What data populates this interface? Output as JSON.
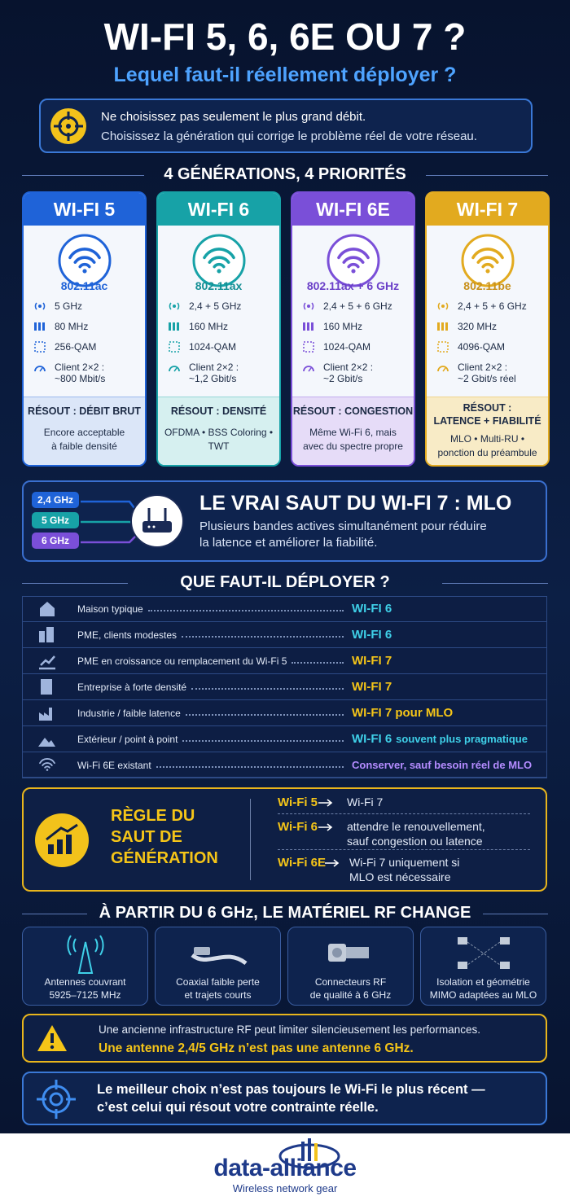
{
  "header": {
    "title": "WI-FI 5, 6, 6E OU 7 ?",
    "subtitle": "Lequel faut-il réellement déployer ?"
  },
  "intro": {
    "lines": [
      "Ne choisissez pas seulement le plus grand débit.",
      "Choisissez la génération qui corrige le problème réel de votre réseau."
    ]
  },
  "generations": {
    "heading": "4 GÉNÉRATIONS, 4 PRIORITÉS",
    "cards": [
      {
        "name": "WI-FI 5",
        "standard": "802.11ac",
        "band": "5 GHz",
        "width": "80 MHz",
        "qam": "256-QAM",
        "client": [
          "Client 2×2 :",
          "~800 Mbit/s"
        ],
        "resolves": [
          "RÉSOUT : DÉBIT BRUT"
        ],
        "text": [
          "Encore acceptable",
          "à faible densité"
        ]
      },
      {
        "name": "WI-FI 6",
        "standard": "802.11ax",
        "band": "2,4 + 5 GHz",
        "width": "160 MHz",
        "qam": "1024-QAM",
        "client": [
          "Client 2×2 :",
          "~1,2 Gbit/s"
        ],
        "resolves": [
          "RÉSOUT : DENSITÉ"
        ],
        "text": [
          "OFDMA • BSS Coloring •",
          "TWT"
        ]
      },
      {
        "name": "WI-FI 6E",
        "standard": "802.11ax + 6 GHz",
        "band": "2,4 + 5 + 6 GHz",
        "width": "160 MHz",
        "qam": "1024-QAM",
        "client": [
          "Client 2×2 :",
          "~2 Gbit/s"
        ],
        "resolves": [
          "RÉSOUT : CONGESTION"
        ],
        "text": [
          "Même Wi-Fi 6, mais",
          "avec du spectre propre"
        ]
      },
      {
        "name": "WI-FI 7",
        "standard": "802.11be",
        "band": "2,4 + 5 + 6 GHz",
        "width": "320 MHz",
        "qam": "4096-QAM",
        "client": [
          "Client 2×2 :",
          "~2 Gbit/s réel"
        ],
        "resolves": [
          "RÉSOUT :",
          "LATENCE + FIABILITÉ"
        ],
        "text": [
          "MLO • Multi-RU •",
          "ponction du préambule"
        ]
      }
    ]
  },
  "mlo": {
    "bands": [
      "2,4 GHz",
      "5 GHz",
      "6 GHz"
    ],
    "title": "LE VRAI SAUT DU WI-FI 7 : MLO",
    "lines": [
      "Plusieurs bandes actives simultanément pour réduire",
      "la latence et améliorer la fiabilité."
    ]
  },
  "deploy": {
    "heading": "QUE FAUT-IL DÉPLOYER ?",
    "rows": [
      {
        "label": "Maison typique",
        "choice": "WI-FI 6"
      },
      {
        "label": "PME, clients modestes",
        "choice": "WI-FI 6"
      },
      {
        "label": "PME en croissance ou remplacement du Wi-Fi 5",
        "choice": "WI-FI 7"
      },
      {
        "label": "Entreprise à forte densité",
        "choice": "WI-FI 7"
      },
      {
        "label": "Industrie / faible latence",
        "choice": "WI-FI 7 pour MLO"
      },
      {
        "label": "Extérieur / point à point",
        "choice": "WI-FI 6",
        "note": "souvent plus pragmatique"
      },
      {
        "label": "Wi-Fi 6E existant",
        "choice": "Conserver, sauf besoin réel de MLO"
      }
    ]
  },
  "rule": {
    "title": [
      "RÈGLE DU",
      "SAUT DE",
      "GÉNÉRATION"
    ],
    "items": [
      {
        "from": "Wi-Fi 5",
        "to": [
          "Wi-Fi 7"
        ]
      },
      {
        "from": "Wi-Fi 6",
        "to": [
          "attendre le renouvellement,",
          "sauf congestion ou latence"
        ]
      },
      {
        "from": "Wi-Fi 6E",
        "to": [
          "Wi-Fi 7 uniquement si",
          "MLO est nécessaire"
        ]
      }
    ]
  },
  "rf": {
    "heading": "À PARTIR DU 6 GHz, LE MATÉRIEL RF CHANGE",
    "items": [
      {
        "lines": [
          "Antennes couvrant",
          "5925–7125 MHz"
        ]
      },
      {
        "lines": [
          "Coaxial faible perte",
          "et trajets courts"
        ]
      },
      {
        "lines": [
          "Connecteurs RF",
          "de qualité à 6 GHz"
        ]
      },
      {
        "lines": [
          "Isolation et géométrie",
          "MIMO adaptées au MLO"
        ]
      }
    ]
  },
  "warning": {
    "lines": [
      "Une ancienne infrastructure RF peut limiter silencieusement les performances.",
      "Une antenne 2,4/5 GHz n’est pas une antenne 6 GHz."
    ]
  },
  "conclusion": {
    "lines": [
      "Le meilleur choix n’est pas toujours le Wi-Fi le plus récent —",
      "c’est celui qui résout votre contrainte réelle."
    ]
  },
  "footer": {
    "brand": "data-alliance",
    "tagline": "Wireless network gear"
  }
}
